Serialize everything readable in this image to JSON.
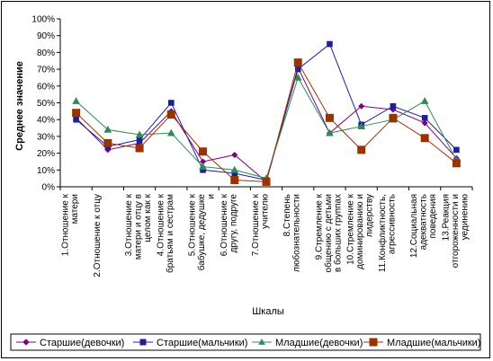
{
  "chart_data": {
    "type": "line",
    "title": "",
    "xlabel": "Шкалы",
    "ylabel": "Среднее значение",
    "ylim": [
      0,
      100
    ],
    "yticks": [
      "0%",
      "10%",
      "20%",
      "30%",
      "40%",
      "50%",
      "60%",
      "70%",
      "80%",
      "90%",
      "100%"
    ],
    "grid": false,
    "legend_position": "bottom",
    "categories": [
      [
        "1.Отношение к",
        "матери"
      ],
      [
        "2.Отношение к отцу"
      ],
      [
        "3.Отношение к",
        "матери и отцу в",
        "целом как к"
      ],
      [
        "4.Отношение к",
        "братьям и сестрам"
      ],
      [
        "5.Отношение к",
        "бабушке, дедушке",
        "и"
      ],
      [
        "6.Отношение к",
        "другу, подруге"
      ],
      [
        "7.Отношение к",
        "учителю"
      ],
      [
        "8.Степень",
        "любознательности"
      ],
      [
        "9.Стремление к",
        "общению с детьми",
        "в больших группах"
      ],
      [
        "10.Стремление к",
        "доминированию и",
        "лидерству"
      ],
      [
        "11.Конфликтность,",
        "агрессивность"
      ],
      [
        "12.Социальная",
        "адекватность",
        "поведения"
      ],
      [
        "13.Реакция",
        "отгороженности и",
        "уединению"
      ]
    ],
    "series": [
      {
        "name": "Старшие(девочки)",
        "color": "#800080",
        "marker": "diamond",
        "values": [
          41,
          22,
          26,
          45,
          15,
          19,
          3,
          71,
          32,
          48,
          46,
          38,
          17
        ]
      },
      {
        "name": "Старшие(мальчики)",
        "color": "#1f1f9a",
        "marker": "square",
        "values": [
          40,
          24,
          28,
          50,
          10,
          8,
          4,
          70,
          85,
          37,
          48,
          41,
          22
        ]
      },
      {
        "name": "Младшие(девочки)",
        "color": "#2e8b57",
        "marker": "triangle",
        "values": [
          51,
          34,
          31,
          32,
          12,
          10,
          5,
          65,
          32,
          36,
          40,
          51,
          16
        ]
      },
      {
        "name": "Младшие(мальчики)",
        "color": "#993300",
        "marker": "square",
        "values": [
          44,
          26,
          23,
          43,
          21,
          4,
          3,
          74,
          41,
          22,
          41,
          29,
          14
        ]
      }
    ]
  }
}
